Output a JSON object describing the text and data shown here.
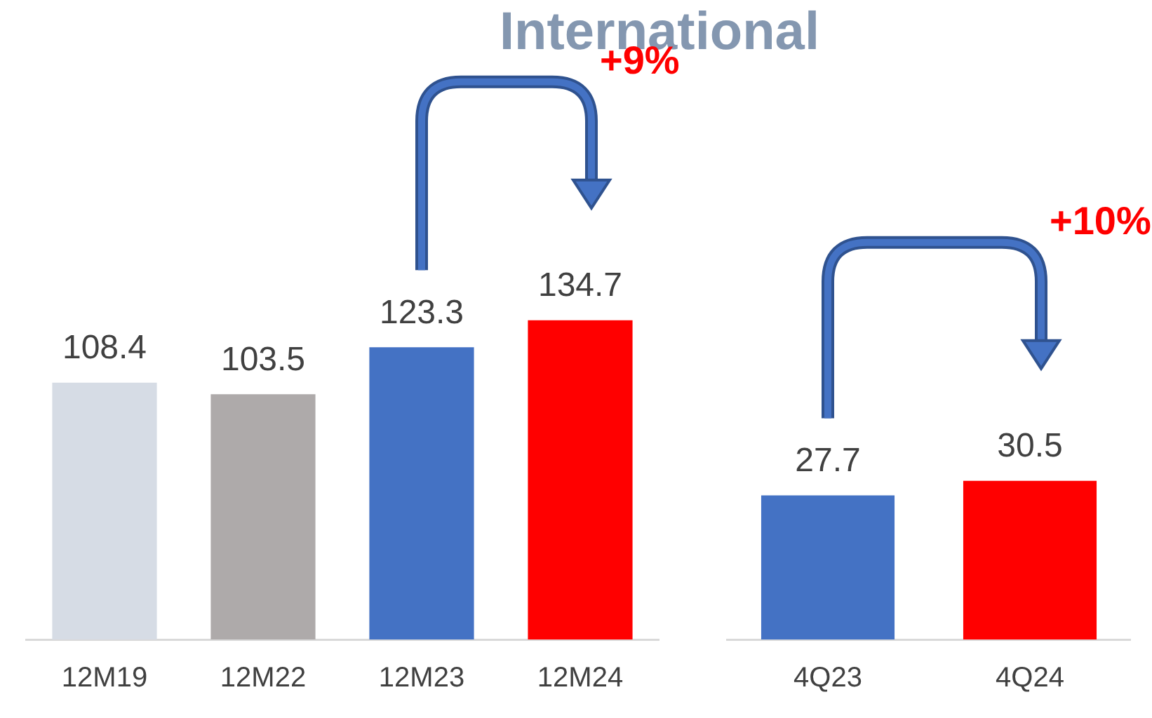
{
  "chart_data": [
    {
      "type": "bar",
      "title": "International",
      "categories": [
        "12M19",
        "12M22",
        "12M23",
        "12M24"
      ],
      "values": [
        108.4,
        103.5,
        123.3,
        134.7
      ],
      "colors": [
        "#d6dce5",
        "#aeaaaa",
        "#4472c4",
        "#ff0000"
      ],
      "data_labels": true,
      "grid": false,
      "legend": false,
      "tick_labels": "x",
      "annotations": [
        "+9%"
      ]
    },
    {
      "type": "bar",
      "categories": [
        "4Q23",
        "4Q24"
      ],
      "values": [
        27.7,
        30.5
      ],
      "colors": [
        "#4472c4",
        "#ff0000"
      ],
      "data_labels": true,
      "grid": false,
      "legend": false,
      "tick_labels": "x",
      "annotations": [
        "+10%"
      ]
    }
  ]
}
